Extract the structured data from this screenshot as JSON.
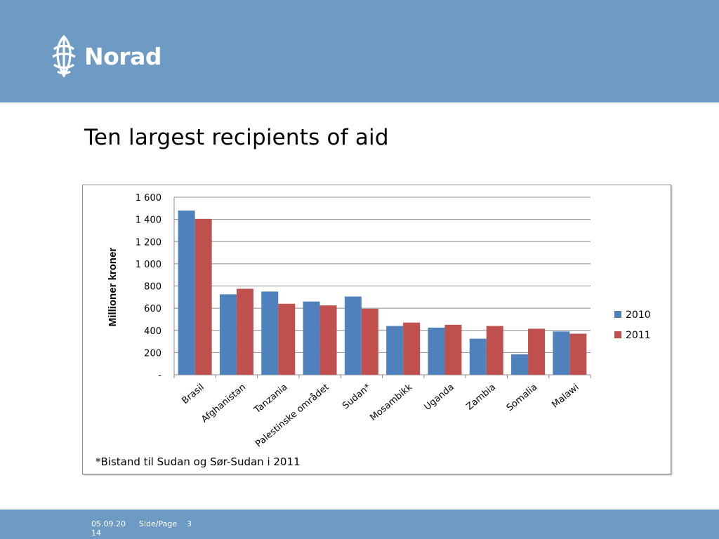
{
  "header": {
    "logo_text": "Norad",
    "color": "#6d9bc3"
  },
  "slide": {
    "title": "Ten largest recipients of aid"
  },
  "chart_data": {
    "type": "bar",
    "categories": [
      "Brasil",
      "Afghanistan",
      "Tanzania",
      "Palestinske området",
      "Sudan*",
      "Mosambikk",
      "Uganda",
      "Zambia",
      "Somalia",
      "Malawi"
    ],
    "series": [
      {
        "name": "2010",
        "color": "#4f81bd",
        "values": [
          1480,
          725,
          750,
          660,
          705,
          440,
          425,
          325,
          185,
          390
        ]
      },
      {
        "name": "2011",
        "color": "#c0504d",
        "values": [
          1405,
          775,
          640,
          625,
          595,
          470,
          450,
          440,
          415,
          370
        ]
      }
    ],
    "title": "",
    "xlabel": "",
    "ylabel": "Millioner kroner",
    "ylim": [
      0,
      1600
    ],
    "yticks": [
      0,
      200,
      400,
      600,
      800,
      1000,
      1200,
      1400,
      1600
    ],
    "ytick_labels": [
      "-",
      "200",
      "400",
      "600",
      "800",
      "1 000",
      "1 200",
      "1 400",
      "1 600"
    ],
    "grid": true,
    "legend": "right",
    "footnote": "*Bistand til Sudan og Sør-Sudan i 2011"
  },
  "footer": {
    "date": "05.09.2014",
    "page_label": "Side/Page",
    "page_number": "3"
  }
}
